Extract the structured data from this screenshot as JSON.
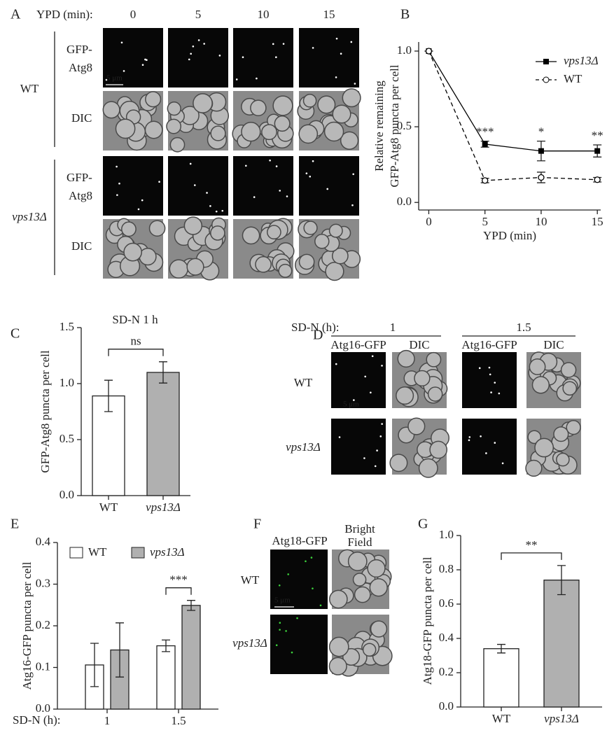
{
  "panel_labels": [
    "A",
    "B",
    "C",
    "D",
    "E",
    "F",
    "G"
  ],
  "image_panels": {
    "A": {
      "header": "YPD (min):",
      "columns": [
        "0",
        "5",
        "10",
        "15"
      ],
      "groups": [
        {
          "strain": "WT",
          "channels": [
            [
              "GFP-",
              "Atg8"
            ],
            "DIC"
          ]
        },
        {
          "strain": "vps13Δ",
          "channels": [
            [
              "GFP-",
              "Atg8"
            ],
            "DIC"
          ]
        }
      ],
      "scale": "5 μm"
    },
    "D": {
      "header": "SD-N (h):",
      "groups": [
        "1",
        "1.5"
      ],
      "columns": [
        "Atg16-GFP",
        "DIC",
        "Atg16-GFP",
        "DIC"
      ],
      "rows": [
        "WT",
        "vps13Δ"
      ],
      "scale": "5 μm"
    },
    "F": {
      "columns": [
        [
          "Atg18-GFP"
        ],
        [
          "Bright",
          "Field"
        ]
      ],
      "rows": [
        "WT",
        "vps13Δ"
      ],
      "scale": "5 μm"
    }
  },
  "chart_data": [
    {
      "type": "line",
      "xlabel": "YPD (min)",
      "ylabel": [
        "Relative remaining",
        "GFP-Atg8 puncta per cell"
      ],
      "x": [
        0,
        5,
        10,
        15
      ],
      "xlim": [
        -0.9,
        15.3
      ],
      "xticks": [
        0,
        5,
        10,
        15
      ],
      "ylim": [
        -0.05,
        1.06
      ],
      "yticks": [
        {
          "value": 0,
          "label": "0.0"
        },
        {
          "value": 0.5,
          "label": "0.5"
        },
        {
          "value": 1,
          "label": "1.0"
        }
      ],
      "series": [
        {
          "name": "vps13Δ",
          "color": "#000000",
          "marker": "square",
          "dashed": false,
          "values": [
            1.0,
            0.385,
            0.34,
            0.34
          ],
          "errors": [
            0,
            0.02,
            0.065,
            0.04
          ]
        },
        {
          "name": "WT",
          "color": "#000000",
          "marker": "circle",
          "dashed": true,
          "values": [
            1.0,
            0.145,
            0.165,
            0.15
          ],
          "errors": [
            0,
            0.015,
            0.035,
            0.015
          ]
        }
      ],
      "annotations": [
        "***",
        "*",
        "**"
      ]
    },
    {
      "type": "bar",
      "title": "SD-N 1 h",
      "ylabel": "GFP-Atg8 puncta per cell",
      "categories": [
        "WT",
        "vps13Δ"
      ],
      "values": [
        0.89,
        1.1
      ],
      "errors": [
        0.14,
        0.095
      ],
      "colors": [
        "#ffffff",
        "#b0b0b0"
      ],
      "ylim": [
        0,
        1.5
      ],
      "yticks": [
        {
          "value": 0,
          "label": "0.0"
        },
        {
          "value": 0.5,
          "label": "0.5"
        },
        {
          "value": 1,
          "label": "1.0"
        },
        {
          "value": 1.5,
          "label": "1.5"
        }
      ],
      "annotations": [
        "ns"
      ]
    },
    {
      "type": "bar",
      "ylabel": "Atg16-GFP puncta per cell",
      "xlabel": "SD-N (h):",
      "categories": [
        "1",
        "1.5"
      ],
      "series": [
        {
          "name": "WT",
          "color": "#ffffff",
          "values": [
            0.106,
            0.152
          ],
          "errors": [
            0.052,
            0.014
          ]
        },
        {
          "name": "vps13Δ",
          "color": "#b0b0b0",
          "values": [
            0.142,
            0.249
          ],
          "errors": [
            0.065,
            0.012
          ]
        }
      ],
      "ylim": [
        0,
        0.4
      ],
      "yticks": [
        {
          "value": 0,
          "label": "0.0"
        },
        {
          "value": 0.1,
          "label": "0.1"
        },
        {
          "value": 0.2,
          "label": "0.2"
        },
        {
          "value": 0.3,
          "label": "0.3"
        },
        {
          "value": 0.4,
          "label": "0.4"
        }
      ],
      "annotations": [
        "***"
      ]
    },
    {
      "type": "bar",
      "ylabel": "Atg18-GFP puncta per cell",
      "categories": [
        "WT",
        "vps13Δ"
      ],
      "values": [
        0.34,
        0.74
      ],
      "errors": [
        0.025,
        0.085
      ],
      "colors": [
        "#ffffff",
        "#b0b0b0"
      ],
      "ylim": [
        0,
        1.0
      ],
      "yticks": [
        {
          "value": 0,
          "label": "0.0"
        },
        {
          "value": 0.2,
          "label": "0.2"
        },
        {
          "value": 0.4,
          "label": "0.4"
        },
        {
          "value": 0.6,
          "label": "0.6"
        },
        {
          "value": 0.8,
          "label": "0.8"
        },
        {
          "value": 1,
          "label": "1.0"
        }
      ],
      "annotations": [
        "**"
      ]
    }
  ]
}
